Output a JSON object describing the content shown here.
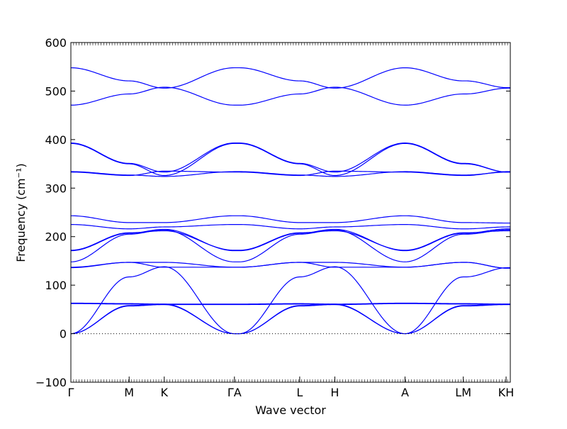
{
  "chart_data": {
    "type": "line",
    "xlabel": "Wave vector",
    "ylabel": "Frequency (cm⁻¹)",
    "ylim": [
      -100,
      600
    ],
    "yticks": [
      -100,
      0,
      100,
      200,
      300,
      400,
      500,
      600
    ],
    "xlim": [
      0,
      6.26
    ],
    "xticks": [
      {
        "label": "Γ",
        "x": 0
      },
      {
        "label": "M",
        "x": 0.83
      },
      {
        "label": "K",
        "x": 1.33
      },
      {
        "label": "ΓA",
        "x": 2.33
      },
      {
        "label": "L",
        "x": 3.26
      },
      {
        "label": "H",
        "x": 3.76
      },
      {
        "label": "A",
        "x": 4.76
      },
      {
        "label": "LM",
        "x": 5.59
      },
      {
        "label": "KH",
        "x": 6.2
      }
    ],
    "zero_line": true,
    "series_color": "#0000ff",
    "segments": [
      {
        "x": [
          0,
          0.83,
          1.33,
          2.33,
          2.4,
          3.26,
          3.76,
          4.76,
          5.59,
          5.62,
          6.22,
          6.26
        ],
        "bands": [
          [
            0,
            117,
            138,
            0,
            0,
            117,
            138,
            0,
            117,
            117,
            136,
            136
          ],
          [
            0,
            58,
            61,
            0,
            0,
            58,
            61,
            0,
            58,
            58,
            61,
            61
          ],
          [
            0,
            57,
            60,
            0,
            0,
            57,
            60,
            0,
            57,
            57,
            60,
            60
          ],
          [
            63,
            62,
            61,
            61,
            61,
            62,
            61,
            63,
            62,
            62,
            61,
            61
          ],
          [
            62,
            61,
            60,
            60,
            60,
            61,
            60,
            62,
            61,
            61,
            60,
            60
          ],
          [
            136,
            147,
            137,
            137,
            137,
            147,
            137,
            137,
            147,
            147,
            135,
            135
          ],
          [
            137,
            147,
            147,
            137,
            137,
            147,
            147,
            137,
            147,
            147,
            135,
            135
          ],
          [
            148,
            205,
            214,
            148,
            148,
            205,
            214,
            148,
            205,
            205,
            214,
            214
          ],
          [
            171,
            207,
            215,
            171,
            171,
            207,
            215,
            171,
            207,
            207,
            216,
            216
          ],
          [
            172,
            208,
            212,
            172,
            172,
            208,
            212,
            172,
            208,
            208,
            212,
            212
          ],
          [
            225,
            216,
            220,
            225,
            225,
            216,
            220,
            225,
            216,
            216,
            220,
            220
          ],
          [
            243,
            229,
            229,
            243,
            243,
            229,
            229,
            243,
            229,
            229,
            228,
            228
          ],
          [
            333,
            326,
            335,
            333,
            333,
            326,
            335,
            333,
            326,
            326,
            334,
            334
          ],
          [
            334,
            327,
            324,
            334,
            334,
            327,
            324,
            334,
            327,
            327,
            333,
            333
          ],
          [
            393,
            351,
            333,
            393,
            393,
            351,
            333,
            393,
            351,
            351,
            333,
            333
          ],
          [
            392,
            350,
            326,
            392,
            392,
            350,
            326,
            392,
            350,
            350,
            333,
            333
          ],
          [
            471,
            494,
            508,
            471,
            471,
            494,
            508,
            471,
            494,
            494,
            506,
            506
          ],
          [
            548,
            521,
            506,
            548,
            548,
            521,
            506,
            548,
            521,
            521,
            507,
            507
          ]
        ]
      }
    ]
  }
}
